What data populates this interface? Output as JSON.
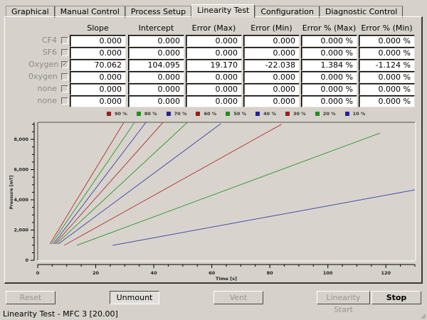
{
  "tabs": [
    {
      "label": "Graphical",
      "active": false
    },
    {
      "label": "Manual Control",
      "active": false
    },
    {
      "label": "Process Setup",
      "active": false
    },
    {
      "label": "Linearity Test",
      "active": true
    },
    {
      "label": "Configuration",
      "active": false
    },
    {
      "label": "Diagnostic Control",
      "active": false
    }
  ],
  "table": {
    "headers": [
      "Slope",
      "Intercept",
      "Error (Max)",
      "Error (Min)",
      "Error % (Max)",
      "Error % (Min)"
    ],
    "rows": [
      {
        "gas": "CF4",
        "checked": false,
        "check_glyph": "",
        "values": [
          "0.000",
          "0.000",
          "0.000",
          "0.000",
          "0.000 %",
          "0.000 %"
        ]
      },
      {
        "gas": "SF6",
        "checked": false,
        "check_glyph": "",
        "values": [
          "0.000",
          "0.000",
          "0.000",
          "0.000",
          "0.000 %",
          "0.000 %"
        ]
      },
      {
        "gas": "Oxygen",
        "checked": true,
        "check_glyph": "✓",
        "values": [
          "70.062",
          "104.095",
          "19.170",
          "-22.038",
          "1.384 %",
          "-1.124 %"
        ]
      },
      {
        "gas": "0xygen",
        "checked": false,
        "check_glyph": "",
        "values": [
          "0.000",
          "0.000",
          "0.000",
          "0.000",
          "0.000 %",
          "0.000 %"
        ]
      },
      {
        "gas": "none",
        "checked": false,
        "check_glyph": "",
        "values": [
          "0.000",
          "0.000",
          "0.000",
          "0.000",
          "0.000 %",
          "0.000 %"
        ]
      },
      {
        "gas": "none",
        "checked": false,
        "check_glyph": "",
        "values": [
          "0.000",
          "0.000",
          "0.000",
          "0.000",
          "0.000 %",
          "0.000 %"
        ]
      }
    ]
  },
  "chart_data": {
    "type": "line",
    "title": "",
    "xlabel": "Time [s]",
    "ylabel": "Pressure [mT]",
    "xlim": [
      0,
      130
    ],
    "ylim": [
      0,
      9130
    ],
    "xticks": [
      "0",
      "20",
      "40",
      "60",
      "80",
      "100",
      "120"
    ],
    "yticks": [
      "0",
      "2,000",
      "4,000",
      "6,000",
      "8,000"
    ],
    "grid": false,
    "legend_position": "top",
    "series": [
      {
        "name": "90 %",
        "color": "#9b1c1c",
        "x": [
          4.2,
          29.7
        ],
        "y": [
          1080,
          9130
        ]
      },
      {
        "name": "80 %",
        "color": "#1f8f1f",
        "x": [
          4.7,
          33.4
        ],
        "y": [
          1080,
          9130
        ]
      },
      {
        "name": "70 %",
        "color": "#22229b",
        "x": [
          5.4,
          37.3
        ],
        "y": [
          1080,
          9130
        ]
      },
      {
        "name": "60 %",
        "color": "#9b1c1c",
        "x": [
          5.9,
          43.2
        ],
        "y": [
          1080,
          9130
        ]
      },
      {
        "name": "50 %",
        "color": "#1f8f1f",
        "x": [
          6.4,
          51.6
        ],
        "y": [
          1080,
          9130
        ]
      },
      {
        "name": "40 %",
        "color": "#22229b",
        "x": [
          7.1,
          63.1
        ],
        "y": [
          1080,
          9040
        ]
      },
      {
        "name": "30 %",
        "color": "#9b1c1c",
        "x": [
          9.1,
          84.0
        ],
        "y": [
          990,
          9000
        ]
      },
      {
        "name": "20 %",
        "color": "#1f8f1f",
        "x": [
          13.5,
          118.0
        ],
        "y": [
          990,
          8420
        ]
      },
      {
        "name": "10 %",
        "color": "#22229b",
        "x": [
          25.8,
          130.0
        ],
        "y": [
          990,
          4660
        ]
      }
    ]
  },
  "buttons": {
    "reset": "Reset",
    "unmount": "Unmount",
    "vent": "Vent",
    "linearity_start": "Linearity Start",
    "stop": "Stop"
  },
  "status_text": "Linearity Test - MFC 3 [20.00]"
}
